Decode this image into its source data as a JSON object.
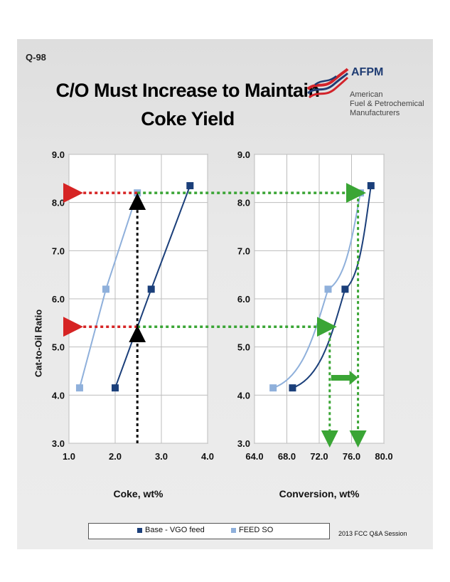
{
  "question_number": "Q-98",
  "title_line1": "C/O Must Increase to Maintain",
  "title_line2": "Coke Yield",
  "logo": {
    "name": "AFPM",
    "subtitle_line1": "American",
    "subtitle_line2": "Fuel & Petrochemical",
    "subtitle_line3": "Manufacturers",
    "colors": {
      "red": "#d2232a",
      "blue": "#1f3c73"
    }
  },
  "footer_text": "2013 FCC Q&A Session",
  "colors": {
    "base_series": "#1b3f7a",
    "feed_series": "#8fb0db",
    "red_arrow": "#d62424",
    "green_arrow": "#3aa535",
    "black_arrow": "#000000"
  },
  "chart_data": [
    {
      "type": "line",
      "ylabel": "Cat-to-Oil Ratio",
      "xlabel": "Coke, wt%",
      "xlim": [
        1.0,
        4.0
      ],
      "ylim": [
        3.0,
        9.0
      ],
      "x_ticks": [
        "1.0",
        "2.0",
        "3.0",
        "4.0"
      ],
      "y_ticks": [
        "3.0",
        "4.0",
        "5.0",
        "6.0",
        "7.0",
        "8.0",
        "9.0"
      ],
      "grid": true,
      "series": [
        {
          "name": "Base - VGO feed",
          "x": [
            2.0,
            2.78,
            3.62
          ],
          "y": [
            4.15,
            6.2,
            8.35
          ]
        },
        {
          "name": "FEED SO",
          "x": [
            1.23,
            1.8,
            2.48
          ],
          "y": [
            4.15,
            6.2,
            8.2
          ]
        }
      ]
    },
    {
      "type": "line",
      "xlabel": "Conversion, wt%",
      "xlim": [
        64.0,
        80.0
      ],
      "ylim": [
        3.0,
        9.0
      ],
      "x_ticks": [
        "64.0",
        "68.0",
        "72.0",
        "76.0",
        "80.0"
      ],
      "y_ticks": [
        "3.0",
        "4.0",
        "5.0",
        "6.0",
        "7.0",
        "8.0",
        "9.0"
      ],
      "grid": true,
      "series": [
        {
          "name": "Base - VGO feed",
          "x": [
            68.7,
            75.2,
            78.4
          ],
          "y": [
            4.15,
            6.2,
            8.35
          ]
        },
        {
          "name": "FEED SO",
          "x": [
            66.3,
            73.1,
            77.1
          ],
          "y": [
            4.15,
            6.2,
            8.2
          ]
        }
      ]
    }
  ],
  "legend": {
    "items": [
      "Base - VGO feed",
      "FEED SO"
    ],
    "placement": "bottom"
  }
}
